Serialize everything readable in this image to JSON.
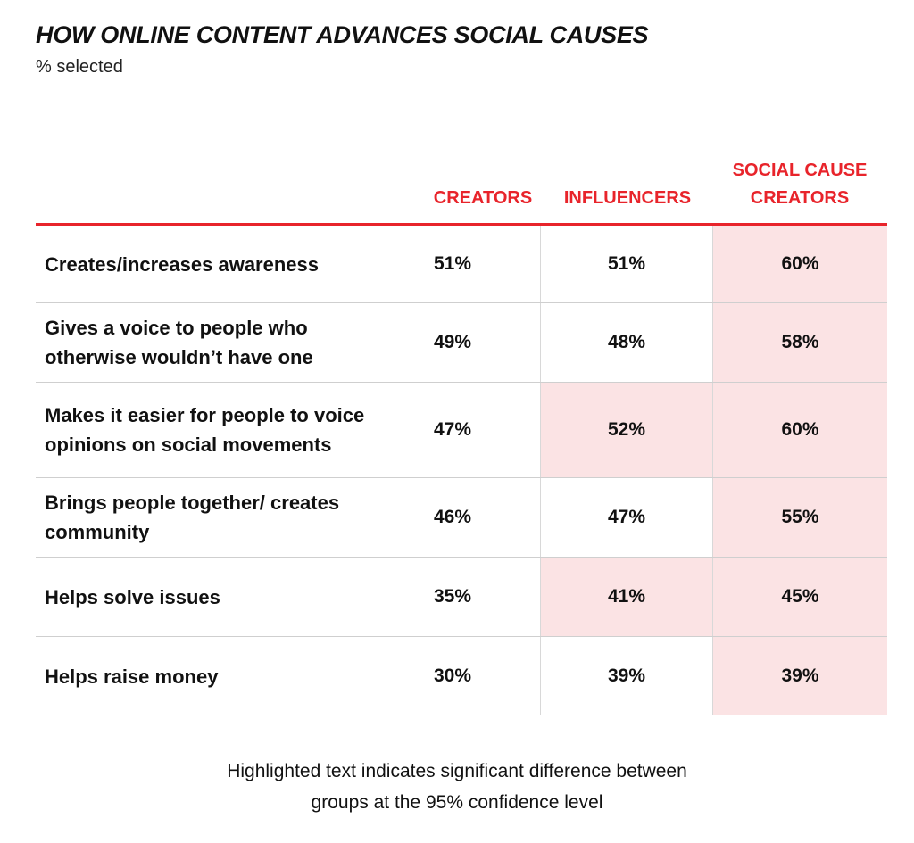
{
  "title": "HOW ONLINE CONTENT ADVANCES SOCIAL CAUSES",
  "subtitle": "% selected",
  "footnote": "Highlighted text indicates significant difference between\ngroups at the 95% confidence level",
  "colors": {
    "accent": "#e8242b",
    "highlight": "#fbe3e4"
  },
  "chart_data": {
    "type": "table",
    "title": "HOW ONLINE CONTENT ADVANCES SOCIAL CAUSES",
    "subtitle": "% selected",
    "columns": [
      "CREATORS",
      "INFLUENCERS",
      "SOCIAL CAUSE CREATORS"
    ],
    "rows": [
      {
        "label": "Creates/increases awareness",
        "values": [
          "51%",
          "51%",
          "60%"
        ],
        "highlight": [
          false,
          false,
          true
        ]
      },
      {
        "label": "Gives a voice to people who otherwise wouldn’t have one",
        "values": [
          "49%",
          "48%",
          "58%"
        ],
        "highlight": [
          false,
          false,
          true
        ]
      },
      {
        "label": "Makes it easier for people to voice opinions on social movements",
        "values": [
          "47%",
          "52%",
          "60%"
        ],
        "highlight": [
          false,
          true,
          true
        ]
      },
      {
        "label": "Brings people together/ creates community",
        "values": [
          "46%",
          "47%",
          "55%"
        ],
        "highlight": [
          false,
          false,
          true
        ]
      },
      {
        "label": "Helps solve issues",
        "values": [
          "35%",
          "41%",
          "45%"
        ],
        "highlight": [
          false,
          true,
          true
        ]
      },
      {
        "label": "Helps raise money",
        "values": [
          "30%",
          "39%",
          "39%"
        ],
        "highlight": [
          false,
          false,
          true
        ]
      }
    ]
  }
}
